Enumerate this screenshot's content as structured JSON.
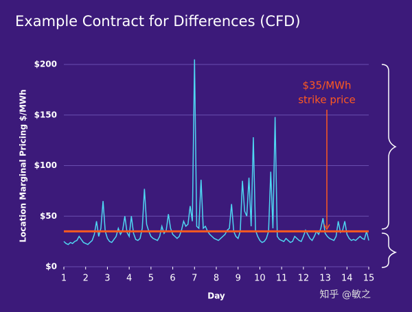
{
  "chart_data": {
    "type": "line",
    "title": "Example Contract for Differences (CFD)",
    "ylabel": "Location Marginal Pricing $/MWh",
    "xlabel": "Day",
    "xlim": [
      1,
      15
    ],
    "xticks": [
      1,
      2,
      3,
      4,
      5,
      6,
      7,
      8,
      9,
      10,
      11,
      12,
      13,
      14,
      15
    ],
    "ylim": [
      0,
      210
    ],
    "yticks": [
      {
        "value": 0,
        "label": "$0"
      },
      {
        "value": 50,
        "label": "$50"
      },
      {
        "value": 100,
        "label": "$100"
      },
      {
        "value": 150,
        "label": "$150"
      },
      {
        "value": 200,
        "label": "$200"
      }
    ],
    "grid": true,
    "x": [
      1,
      1.1,
      1.2,
      1.3,
      1.4,
      1.5,
      1.6,
      1.7,
      1.8,
      1.9,
      2,
      2.1,
      2.2,
      2.3,
      2.4,
      2.5,
      2.6,
      2.7,
      2.8,
      2.9,
      3,
      3.1,
      3.2,
      3.3,
      3.4,
      3.5,
      3.6,
      3.7,
      3.8,
      3.9,
      4,
      4.1,
      4.2,
      4.3,
      4.4,
      4.5,
      4.6,
      4.7,
      4.8,
      4.9,
      5,
      5.1,
      5.2,
      5.3,
      5.4,
      5.5,
      5.6,
      5.7,
      5.8,
      5.9,
      6,
      6.1,
      6.2,
      6.3,
      6.4,
      6.5,
      6.6,
      6.7,
      6.8,
      6.9,
      7,
      7.1,
      7.2,
      7.3,
      7.4,
      7.5,
      7.6,
      7.7,
      7.8,
      7.9,
      8,
      8.1,
      8.2,
      8.3,
      8.4,
      8.5,
      8.6,
      8.7,
      8.8,
      8.9,
      9,
      9.1,
      9.2,
      9.3,
      9.4,
      9.5,
      9.6,
      9.7,
      9.8,
      9.9,
      10,
      10.1,
      10.2,
      10.3,
      10.4,
      10.5,
      10.6,
      10.7,
      10.8,
      10.9,
      11,
      11.1,
      11.2,
      11.3,
      11.4,
      11.5,
      11.6,
      11.7,
      11.8,
      11.9,
      12,
      12.1,
      12.2,
      12.3,
      12.4,
      12.5,
      12.6,
      12.7,
      12.8,
      12.9,
      13,
      13.1,
      13.2,
      13.3,
      13.4,
      13.5,
      13.6,
      13.7,
      13.8,
      13.9,
      14,
      14.1,
      14.2,
      14.3,
      14.4,
      14.5,
      14.6,
      14.7,
      14.8,
      14.9,
      15
    ],
    "series": [
      {
        "color": "#4fd6f2",
        "values": [
          25,
          23,
          22,
          24,
          23,
          25,
          26,
          30,
          27,
          24,
          23,
          22,
          24,
          26,
          32,
          45,
          30,
          38,
          65,
          35,
          28,
          25,
          24,
          27,
          30,
          38,
          32,
          36,
          50,
          34,
          30,
          50,
          33,
          27,
          26,
          28,
          38,
          77,
          42,
          35,
          30,
          28,
          27,
          26,
          30,
          40,
          33,
          36,
          52,
          38,
          32,
          30,
          28,
          30,
          36,
          45,
          40,
          42,
          60,
          45,
          205,
          40,
          38,
          86,
          38,
          40,
          35,
          32,
          30,
          28,
          27,
          26,
          28,
          30,
          32,
          36,
          38,
          62,
          35,
          30,
          28,
          35,
          85,
          55,
          50,
          88,
          40,
          128,
          36,
          30,
          26,
          24,
          25,
          28,
          35,
          94,
          38,
          148,
          30,
          27,
          26,
          25,
          28,
          26,
          24,
          25,
          30,
          28,
          26,
          25,
          30,
          36,
          32,
          28,
          26,
          30,
          35,
          32,
          38,
          48,
          33,
          30,
          28,
          27,
          26,
          30,
          45,
          34,
          36,
          45,
          32,
          28,
          26,
          27,
          26,
          28,
          30,
          28,
          27,
          35,
          26
        ]
      }
    ],
    "strike_price": 35,
    "strike_color": "#ff5a1f",
    "annotation": [
      "$35/MWh",
      "strike price"
    ],
    "watermark": "知乎 @敏之"
  }
}
